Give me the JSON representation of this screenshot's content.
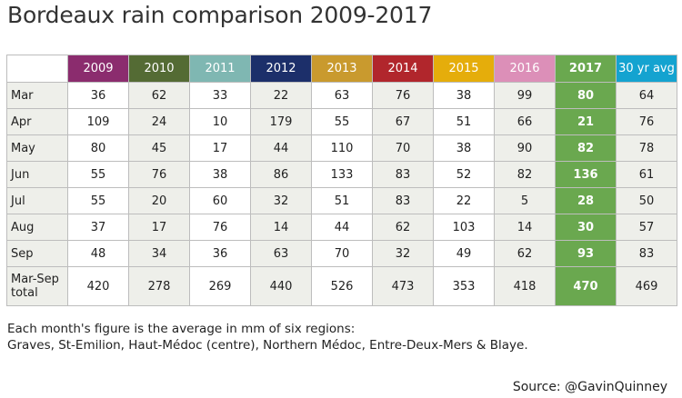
{
  "title": "Bordeaux rain comparison 2009-2017",
  "note_line1": "Each month's figure is the average in mm of six regions:",
  "note_line2": "Graves, St-Emilion, Haut-Médoc (centre), Northern Médoc, Entre-Deux-Mers & Blaye.",
  "source": "Source: @GavinQuinney",
  "chart_data": {
    "type": "table",
    "title": "Bordeaux rain comparison 2009-2017",
    "columns": [
      "2009",
      "2010",
      "2011",
      "2012",
      "2013",
      "2014",
      "2015",
      "2016",
      "2017",
      "30 yr avg"
    ],
    "column_colors": [
      "#8b2c6e",
      "#546b34",
      "#7fb7b2",
      "#1c2f6a",
      "#c99a2e",
      "#b1262c",
      "#e5ad0b",
      "#dc8fb8",
      "#6aa84f",
      "#14a3d0"
    ],
    "highlight_column": "2017",
    "highlight_color": "#6aa84f",
    "rows": [
      {
        "label": "Mar",
        "values": [
          "36",
          "62",
          "33",
          "22",
          "63",
          "76",
          "38",
          "99",
          "80",
          "64"
        ]
      },
      {
        "label": "Apr",
        "values": [
          "109",
          "24",
          "10",
          "179",
          "55",
          "67",
          "51",
          "66",
          "21",
          "76"
        ]
      },
      {
        "label": "May",
        "values": [
          "80",
          "45",
          "17",
          "44",
          "110",
          "70",
          "38",
          "90",
          "82",
          "78"
        ]
      },
      {
        "label": "Jun",
        "values": [
          "55",
          "76",
          "38",
          "86",
          "133",
          "83",
          "52",
          "82",
          "136",
          "61"
        ]
      },
      {
        "label": "Jul",
        "values": [
          "55",
          "20",
          "60",
          "32",
          "51",
          "83",
          "22",
          "5",
          "28",
          "50"
        ]
      },
      {
        "label": "Aug",
        "values": [
          "37",
          "17",
          "76",
          "14",
          "44",
          "62",
          "103",
          "14",
          "30",
          "57"
        ]
      },
      {
        "label": "Sep",
        "values": [
          "48",
          "34",
          "36",
          "63",
          "70",
          "32",
          "49",
          "62",
          "93",
          "83"
        ]
      },
      {
        "label": "Mar-Sep total",
        "values": [
          "420",
          "278",
          "269",
          "440",
          "526",
          "473",
          "353",
          "418",
          "470",
          "469"
        ]
      }
    ]
  }
}
